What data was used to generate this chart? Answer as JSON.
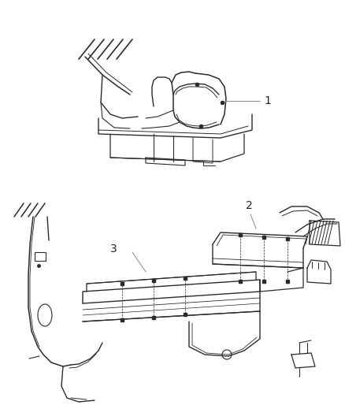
{
  "background_color": "#ffffff",
  "line_color": "#2a2a2a",
  "label_color": "#222222",
  "fig_width": 4.38,
  "fig_height": 5.33,
  "dpi": 100
}
